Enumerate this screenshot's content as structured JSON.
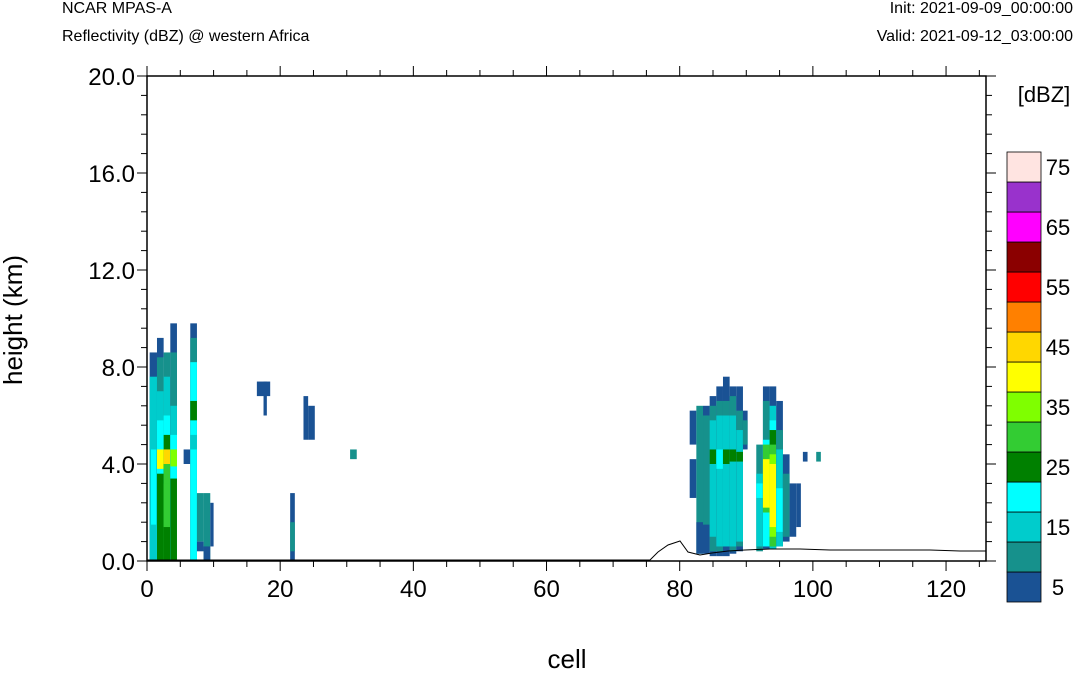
{
  "header": {
    "model": "NCAR MPAS-A",
    "field": "Reflectivity (dBZ) @ western Africa",
    "init": "Init: 2021-09-09_00:00:00",
    "valid": "Valid: 2021-09-12_03:00:00"
  },
  "chart_data": {
    "type": "heatmap",
    "title": "Reflectivity (dBZ) @ western Africa",
    "xlabel": "cell",
    "ylabel": "height (km)",
    "xlim": [
      0,
      126
    ],
    "ylim": [
      0,
      20
    ],
    "x_ticks": [
      0,
      20,
      40,
      60,
      80,
      100,
      120
    ],
    "y_ticks": [
      0.0,
      4.0,
      8.0,
      12.0,
      16.0,
      20.0
    ],
    "y_tick_labels": [
      "0.0",
      "4.0",
      "8.0",
      "12.0",
      "16.0",
      "20.0"
    ],
    "colorbar": {
      "title": "[dBZ]",
      "levels": [
        0,
        5,
        10,
        15,
        20,
        25,
        30,
        35,
        40,
        45,
        50,
        55,
        60,
        65,
        70,
        75
      ],
      "labels": [
        "5",
        "15",
        "25",
        "35",
        "45",
        "55",
        "65",
        "75"
      ],
      "colors": [
        "#1a5294",
        "#16918c",
        "#00cccc",
        "#00ffff",
        "#008000",
        "#33cc33",
        "#7fff00",
        "#ffff00",
        "#ffd700",
        "#ff8000",
        "#ff0000",
        "#8b0000",
        "#ff00ff",
        "#9932cc",
        "#ffe4e1"
      ]
    },
    "cells": [
      [
        0.4,
        1.5,
        0.0,
        8.6,
        0
      ],
      [
        0.4,
        1.5,
        0.0,
        7.6,
        2
      ],
      [
        0.6,
        1.4,
        0.0,
        4.6,
        3
      ],
      [
        0.6,
        1.4,
        0.0,
        1.5,
        2
      ],
      [
        1.5,
        2.5,
        0.0,
        9.2,
        0
      ],
      [
        1.5,
        2.5,
        0.0,
        8.4,
        1
      ],
      [
        1.5,
        2.5,
        0.0,
        7.0,
        2
      ],
      [
        1.5,
        2.5,
        0.0,
        5.8,
        3
      ],
      [
        1.5,
        2.5,
        0.0,
        3.6,
        4
      ],
      [
        1.5,
        2.5,
        3.8,
        4.6,
        7
      ],
      [
        2.5,
        3.5,
        0.0,
        8.6,
        1
      ],
      [
        2.5,
        3.5,
        0.0,
        7.6,
        2
      ],
      [
        2.5,
        3.5,
        0.0,
        6.0,
        3
      ],
      [
        2.5,
        3.5,
        0.0,
        5.2,
        4
      ],
      [
        2.5,
        3.5,
        0.0,
        4.6,
        5
      ],
      [
        2.5,
        3.5,
        4.0,
        4.6,
        8
      ],
      [
        2.5,
        3.5,
        1.4,
        3.2,
        5
      ],
      [
        2.5,
        3.5,
        0.0,
        1.4,
        4
      ],
      [
        3.5,
        4.5,
        0.0,
        9.8,
        0
      ],
      [
        3.5,
        4.5,
        0.0,
        8.6,
        1
      ],
      [
        3.5,
        4.5,
        0.0,
        6.4,
        2
      ],
      [
        3.5,
        4.5,
        0.0,
        5.2,
        3
      ],
      [
        3.5,
        4.5,
        0.0,
        3.4,
        4
      ],
      [
        3.5,
        4.5,
        3.9,
        4.6,
        6
      ],
      [
        5.5,
        6.5,
        4.0,
        4.6,
        0
      ],
      [
        6.5,
        7.5,
        0.0,
        9.8,
        0
      ],
      [
        6.5,
        7.5,
        0.0,
        9.2,
        1
      ],
      [
        6.5,
        7.5,
        0.0,
        8.2,
        3
      ],
      [
        6.5,
        7.5,
        5.8,
        6.6,
        4
      ],
      [
        6.5,
        7.5,
        4.6,
        5.2,
        2
      ],
      [
        7.5,
        8.5,
        0.8,
        2.8,
        1
      ],
      [
        7.5,
        8.5,
        0.4,
        0.8,
        0
      ],
      [
        8.5,
        9.5,
        0.0,
        2.8,
        1
      ],
      [
        8.5,
        9.5,
        0.0,
        0.6,
        0
      ],
      [
        9.5,
        10.0,
        0.6,
        2.4,
        0
      ],
      [
        16.5,
        18.5,
        6.8,
        7.4,
        0
      ],
      [
        17.5,
        18,
        6.0,
        7.4,
        0
      ],
      [
        21.5,
        22.2,
        0.0,
        2.8,
        0
      ],
      [
        21.5,
        22.2,
        0.4,
        1.6,
        1
      ],
      [
        23.5,
        24.2,
        5.0,
        6.8,
        0
      ],
      [
        24.2,
        25.2,
        5.0,
        6.4,
        0
      ],
      [
        30.5,
        31.5,
        4.2,
        4.6,
        1
      ],
      [
        81.5,
        82.5,
        4.8,
        6.2,
        0
      ],
      [
        81.5,
        82.5,
        2.6,
        4.2,
        0
      ],
      [
        82.5,
        83.5,
        0.3,
        6.4,
        1
      ],
      [
        82.5,
        83.5,
        0.3,
        1.6,
        0
      ],
      [
        83.5,
        84.5,
        0.3,
        6.4,
        0
      ],
      [
        83.5,
        84.5,
        1.5,
        6.0,
        1
      ],
      [
        84.5,
        85.5,
        0.2,
        6.8,
        0
      ],
      [
        84.5,
        85.5,
        0.4,
        6.4,
        1
      ],
      [
        84.5,
        85.5,
        1.0,
        5.8,
        2
      ],
      [
        84.5,
        85.5,
        4.0,
        4.6,
        4
      ],
      [
        85.5,
        86.5,
        0.2,
        7.2,
        0
      ],
      [
        85.5,
        86.5,
        0.4,
        6.6,
        1
      ],
      [
        85.5,
        86.5,
        0.6,
        6.0,
        2
      ],
      [
        85.5,
        86.5,
        3.8,
        4.6,
        3
      ],
      [
        86.5,
        87.5,
        0.2,
        7.6,
        0
      ],
      [
        86.5,
        87.5,
        0.6,
        6.6,
        1
      ],
      [
        86.5,
        87.5,
        0.6,
        6.0,
        2
      ],
      [
        86.5,
        87.5,
        4.0,
        4.6,
        4
      ],
      [
        87.5,
        88.5,
        0.3,
        7.2,
        0
      ],
      [
        87.5,
        88.5,
        0.4,
        6.8,
        1
      ],
      [
        87.5,
        88.5,
        0.6,
        6.0,
        2
      ],
      [
        87.5,
        88.5,
        4.1,
        4.6,
        4
      ],
      [
        88.5,
        89.5,
        0.4,
        7.2,
        0
      ],
      [
        88.5,
        89.5,
        0.6,
        6.2,
        1
      ],
      [
        88.5,
        89.5,
        0.8,
        5.4,
        2
      ],
      [
        88.5,
        89.5,
        4.1,
        4.5,
        4
      ],
      [
        89.5,
        90.2,
        4.6,
        6.2,
        0
      ],
      [
        89.5,
        90.2,
        4.8,
        5.8,
        1
      ],
      [
        91.5,
        92.5,
        0.4,
        4.8,
        1
      ],
      [
        91.5,
        92.5,
        0.6,
        3.6,
        2
      ],
      [
        91.5,
        92.5,
        2.6,
        3.2,
        3
      ],
      [
        92.5,
        93.5,
        0.5,
        7.2,
        0
      ],
      [
        92.5,
        93.5,
        0.6,
        6.6,
        1
      ],
      [
        92.5,
        93.5,
        0.6,
        5.0,
        3
      ],
      [
        92.5,
        93.5,
        2.0,
        4.8,
        5
      ],
      [
        92.5,
        93.5,
        2.2,
        4.2,
        7
      ],
      [
        93.5,
        94.5,
        0.5,
        7.2,
        0
      ],
      [
        93.5,
        94.5,
        0.5,
        6.4,
        2
      ],
      [
        93.5,
        94.5,
        0.6,
        5.8,
        3
      ],
      [
        93.5,
        94.5,
        0.6,
        5.4,
        4
      ],
      [
        93.5,
        94.5,
        0.6,
        4.8,
        5
      ],
      [
        93.5,
        94.5,
        1.0,
        4.4,
        6
      ],
      [
        93.5,
        94.5,
        1.4,
        4.0,
        7
      ],
      [
        94.5,
        95.5,
        0.6,
        6.6,
        0
      ],
      [
        94.5,
        95.5,
        0.6,
        5.4,
        1
      ],
      [
        94.5,
        95.5,
        0.6,
        4.6,
        2
      ],
      [
        94.5,
        95.5,
        1.2,
        3.0,
        3
      ],
      [
        95.5,
        96.5,
        0.8,
        4.4,
        0
      ],
      [
        95.5,
        96.5,
        1.0,
        3.6,
        1
      ],
      [
        96.5,
        97.5,
        1.0,
        3.2,
        0
      ],
      [
        97.5,
        98.2,
        1.4,
        3.2,
        0
      ],
      [
        98.5,
        99.2,
        4.1,
        4.5,
        0
      ],
      [
        100.5,
        101.2,
        4.1,
        4.5,
        1
      ]
    ]
  }
}
